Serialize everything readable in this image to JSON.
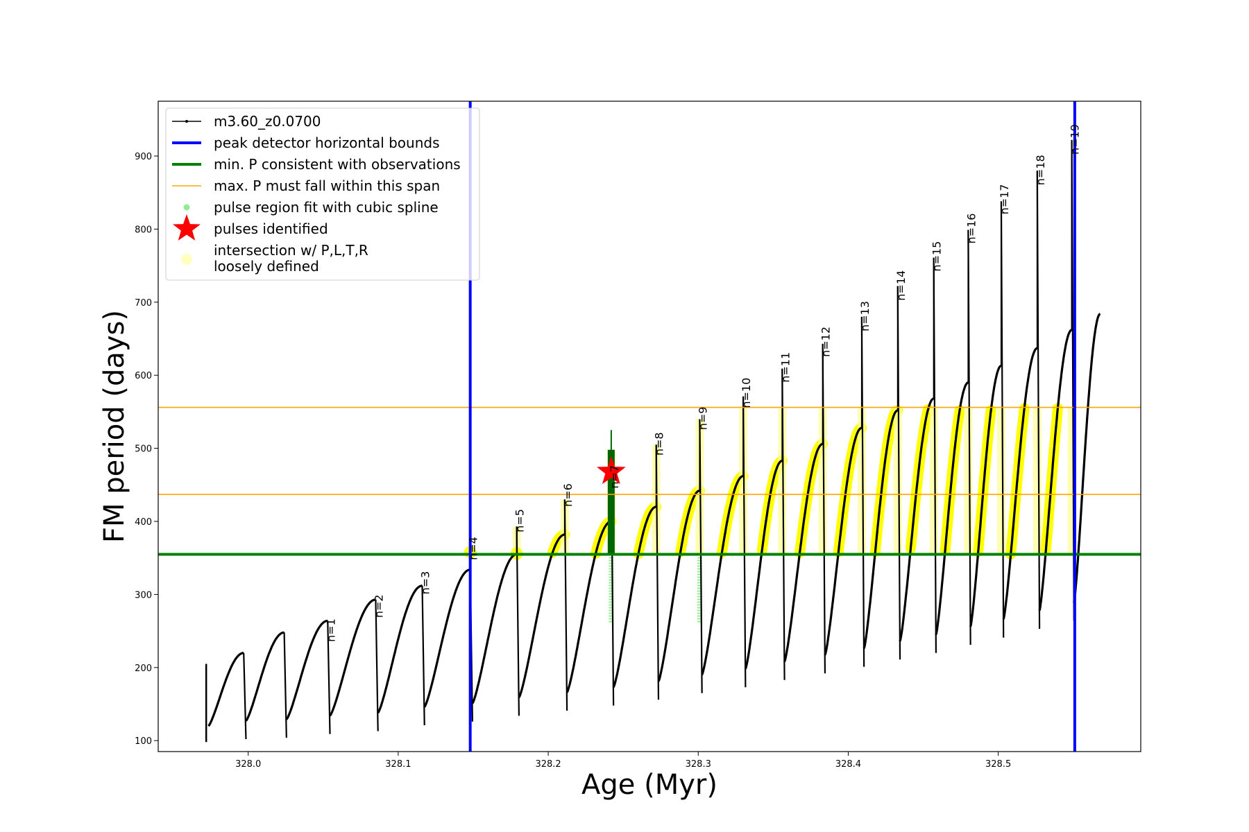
{
  "chart_data": {
    "type": "line",
    "xlabel": "Age (Myr)",
    "ylabel": "FM period (days)",
    "xlim": [
      327.94,
      328.595
    ],
    "ylim": [
      85,
      975
    ],
    "xticks": [
      328.0,
      328.1,
      328.2,
      328.3,
      328.4,
      328.5
    ],
    "xtick_labels": [
      "328.0",
      "328.1",
      "328.2",
      "328.3",
      "328.4",
      "328.5"
    ],
    "yticks": [
      100,
      200,
      300,
      400,
      500,
      600,
      700,
      800,
      900
    ],
    "ytick_labels": [
      "100",
      "200",
      "300",
      "400",
      "500",
      "600",
      "700",
      "800",
      "900"
    ],
    "series_name": "m3.60_z0.0700",
    "start_age": 327.972,
    "pulses": [
      {
        "age": 327.997,
        "peak": 220,
        "spike": 220,
        "min": 102
      },
      {
        "age": 328.024,
        "peak": 248,
        "spike": 248,
        "min": 104
      },
      {
        "age": 328.053,
        "peak": 264,
        "spike": 264,
        "min": 109
      },
      {
        "age": 328.085,
        "peak": 293,
        "spike": 293,
        "min": 113
      },
      {
        "age": 328.116,
        "peak": 312,
        "spike": 312,
        "min": 121
      },
      {
        "age": 328.148,
        "peak": 334,
        "spike": 334,
        "min": 126
      },
      {
        "age": 328.179,
        "peak": 355,
        "spike": 393,
        "min": 134
      },
      {
        "age": 328.211,
        "peak": 382,
        "spike": 430,
        "min": 141
      },
      {
        "age": 328.242,
        "peak": 400,
        "spike": 498,
        "min": 148
      },
      {
        "age": 328.272,
        "peak": 420,
        "spike": 505,
        "min": 156
      },
      {
        "age": 328.301,
        "peak": 442,
        "spike": 540,
        "min": 165
      },
      {
        "age": 328.33,
        "peak": 462,
        "spike": 571,
        "min": 173
      },
      {
        "age": 328.356,
        "peak": 483,
        "spike": 609,
        "min": 183
      },
      {
        "age": 328.383,
        "peak": 506,
        "spike": 643,
        "min": 192
      },
      {
        "age": 328.409,
        "peak": 528,
        "spike": 680,
        "min": 201
      },
      {
        "age": 328.433,
        "peak": 552,
        "spike": 722,
        "min": 211
      },
      {
        "age": 328.457,
        "peak": 568,
        "spike": 761,
        "min": 220
      },
      {
        "age": 328.48,
        "peak": 590,
        "spike": 799,
        "min": 231
      },
      {
        "age": 328.502,
        "peak": 613,
        "spike": 838,
        "min": 241
      },
      {
        "age": 328.526,
        "peak": 637,
        "spike": 880,
        "min": 253
      },
      {
        "age": 328.549,
        "peak": 662,
        "spike": 922,
        "min": 264
      }
    ],
    "end_point": {
      "age": 328.568,
      "value": 684
    },
    "pulse_labels": [
      {
        "text": "n=1",
        "age": 328.053,
        "value": 235
      },
      {
        "text": "n=2",
        "age": 328.085,
        "value": 268
      },
      {
        "text": "n=3",
        "age": 328.116,
        "value": 300
      },
      {
        "text": "n=4",
        "age": 328.148,
        "value": 347
      },
      {
        "text": "n=5",
        "age": 328.179,
        "value": 385
      },
      {
        "text": "n=6",
        "age": 328.211,
        "value": 420
      },
      {
        "text": "n=7",
        "age": 328.242,
        "value": 445
      },
      {
        "text": "n=8",
        "age": 328.272,
        "value": 490
      },
      {
        "text": "n=9",
        "age": 328.301,
        "value": 525
      },
      {
        "text": "n=10",
        "age": 328.33,
        "value": 555
      },
      {
        "text": "n=11",
        "age": 328.356,
        "value": 590
      },
      {
        "text": "n=12",
        "age": 328.383,
        "value": 625
      },
      {
        "text": "n=13",
        "age": 328.409,
        "value": 660
      },
      {
        "text": "n=14",
        "age": 328.433,
        "value": 702
      },
      {
        "text": "n=15",
        "age": 328.457,
        "value": 742
      },
      {
        "text": "n=16",
        "age": 328.48,
        "value": 780
      },
      {
        "text": "n=17",
        "age": 328.502,
        "value": 820
      },
      {
        "text": "n=18",
        "age": 328.526,
        "value": 860
      },
      {
        "text": "n=19",
        "age": 328.549,
        "value": 902
      }
    ],
    "peak_detector_bounds": [
      328.148,
      328.551
    ],
    "min_period": 355,
    "max_period_span": [
      437,
      556
    ],
    "spline_pulse_ages": [
      328.242,
      328.301
    ],
    "identified_pulse": {
      "age": 328.242,
      "value": 468
    },
    "loose_intersection_points": [
      {
        "age": 328.148,
        "value": 358
      },
      {
        "age": 328.179,
        "value": 356
      }
    ],
    "legend": [
      {
        "label": "m3.60_z0.0700",
        "marker": "line-dot",
        "color": "#000000"
      },
      {
        "label": "peak detector horizontal bounds",
        "marker": "line",
        "color": "#0000ff"
      },
      {
        "label": "min. P consistent with observations",
        "marker": "line",
        "color": "#008000"
      },
      {
        "label": "max. P must fall within this span",
        "marker": "thin-line",
        "color": "#ffa500"
      },
      {
        "label": "pulse region fit with cubic spline",
        "marker": "dot",
        "color": "#90ee90"
      },
      {
        "label": "pulses identified",
        "marker": "star",
        "color": "#ff0000"
      },
      {
        "label": "intersection w/ P,L,T,R",
        "marker": "circle",
        "color": "#ffff00"
      },
      {
        "label": "loosely defined",
        "marker": "none",
        "color": "#ffffcc"
      }
    ],
    "colors": {
      "track": "#000000",
      "bounds": "#0000ff",
      "min_period": "#008000",
      "max_span": "#ffa500",
      "intersection": "#ffff00",
      "loose": "#ffff99",
      "spline": "#90ee90",
      "identified_fill": "#006400",
      "star": "#ff0000"
    },
    "legend_position": "upper-left"
  }
}
